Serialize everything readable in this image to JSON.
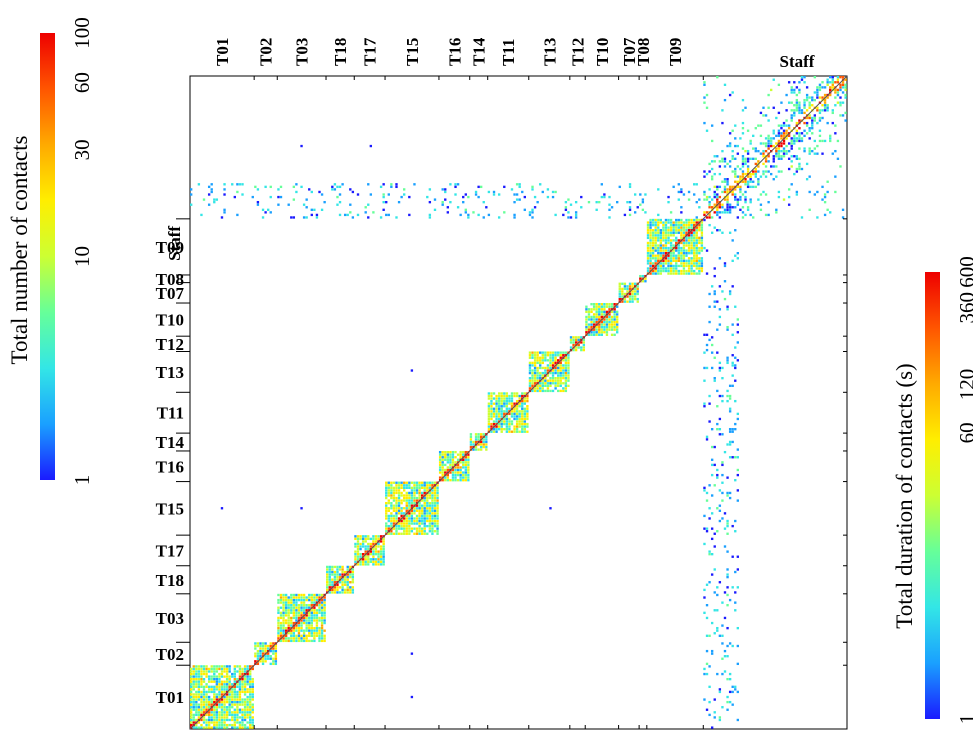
{
  "chart_data": [
    {
      "type": "heatmap",
      "title": "",
      "groups": [
        "T01",
        "T02",
        "T03",
        "T18",
        "T17",
        "T15",
        "T16",
        "T14",
        "T11",
        "T13",
        "T12",
        "T10",
        "T07",
        "T08",
        "T09",
        "Staff"
      ],
      "group_sizes": [
        25,
        9,
        19,
        11,
        12,
        21,
        12,
        7,
        16,
        16,
        6,
        13,
        8,
        3,
        22,
        56
      ],
      "upper_triangle": "Total number of contacts",
      "lower_triangle": "Total duration of contacts (s)",
      "diagonal_line": true,
      "sparse_offblock_cells": [
        {
          "row": "Staff",
          "col": "T03"
        },
        {
          "row": "Staff",
          "col": "T17"
        },
        {
          "row": "T13",
          "col": "T15"
        },
        {
          "row": "T15",
          "col": "T01"
        },
        {
          "row": "T15",
          "col": "T03"
        },
        {
          "row": "T15",
          "col": "T13"
        },
        {
          "row": "T02",
          "col": "T15"
        },
        {
          "row": "T01",
          "col": "T15"
        }
      ]
    },
    {
      "type": "colorbar",
      "label": "Total number of contacts",
      "ticks": [
        "1",
        "10",
        "30",
        "60",
        "100"
      ],
      "range": [
        1,
        100
      ],
      "scale": "log",
      "colormap": [
        "#1a1aff",
        "#1aa0ff",
        "#33e6e6",
        "#66ff99",
        "#ccff33",
        "#ffee00",
        "#ffaa00",
        "#ff5500",
        "#ee0000"
      ]
    },
    {
      "type": "colorbar",
      "label": "Total duration of contacts (s)",
      "ticks": [
        "1",
        "60",
        "120",
        "360",
        "600"
      ],
      "range": [
        1,
        600
      ],
      "scale": "log",
      "colormap": [
        "#1a1aff",
        "#1aa0ff",
        "#33e6e6",
        "#66ff99",
        "#ccff33",
        "#ffee00",
        "#ffaa00",
        "#ff5500",
        "#ee0000"
      ]
    }
  ]
}
